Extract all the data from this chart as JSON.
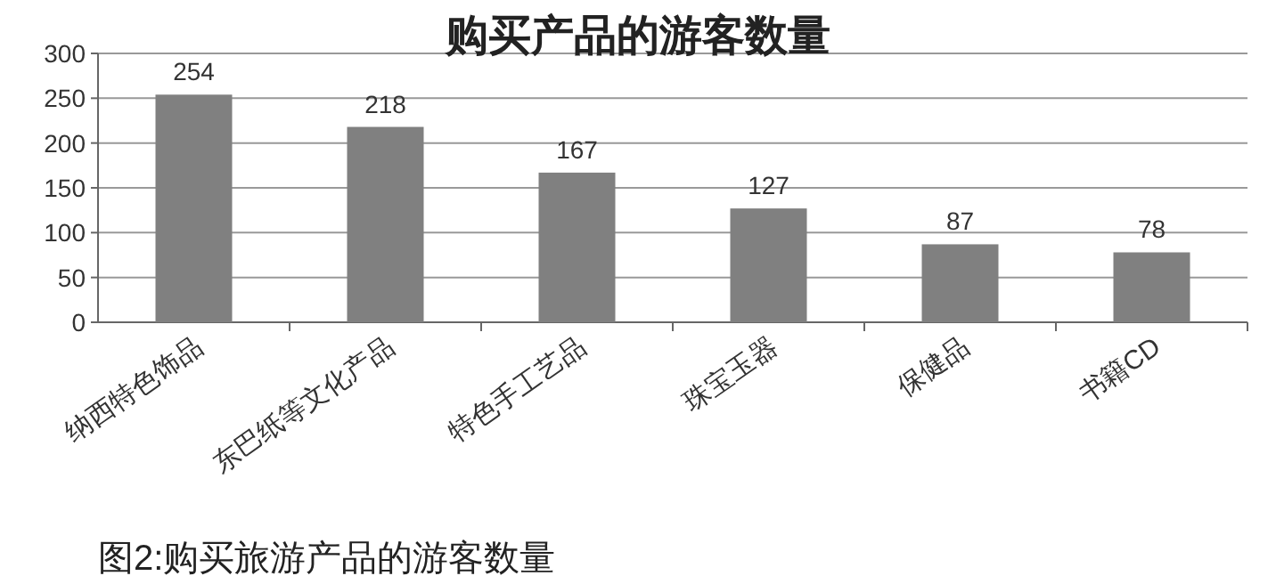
{
  "chart_data": {
    "type": "bar",
    "title": "购买产品的游客数量",
    "categories": [
      "纳西特色饰品",
      "东巴纸等文化产品",
      "特色手工艺品",
      "珠宝玉器",
      "保健品",
      "书籍CD"
    ],
    "values": [
      254,
      218,
      167,
      127,
      87,
      78
    ],
    "color": "#808080",
    "ylim": [
      0,
      300
    ],
    "yticks": [
      0,
      50,
      100,
      150,
      200,
      250,
      300
    ],
    "grid": "y",
    "data_labels": true,
    "annotations": [
      "图2:购买旅游产品的游客数量"
    ]
  }
}
